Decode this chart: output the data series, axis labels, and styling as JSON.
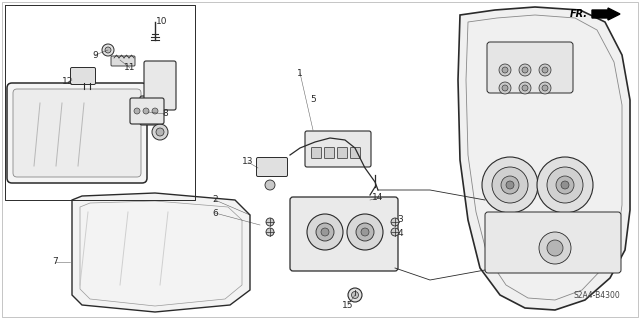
{
  "bg_color": "#ffffff",
  "line_color": "#2a2a2a",
  "part_number": "S2A4-B4300",
  "figsize": [
    6.4,
    3.19
  ],
  "dpi": 100
}
